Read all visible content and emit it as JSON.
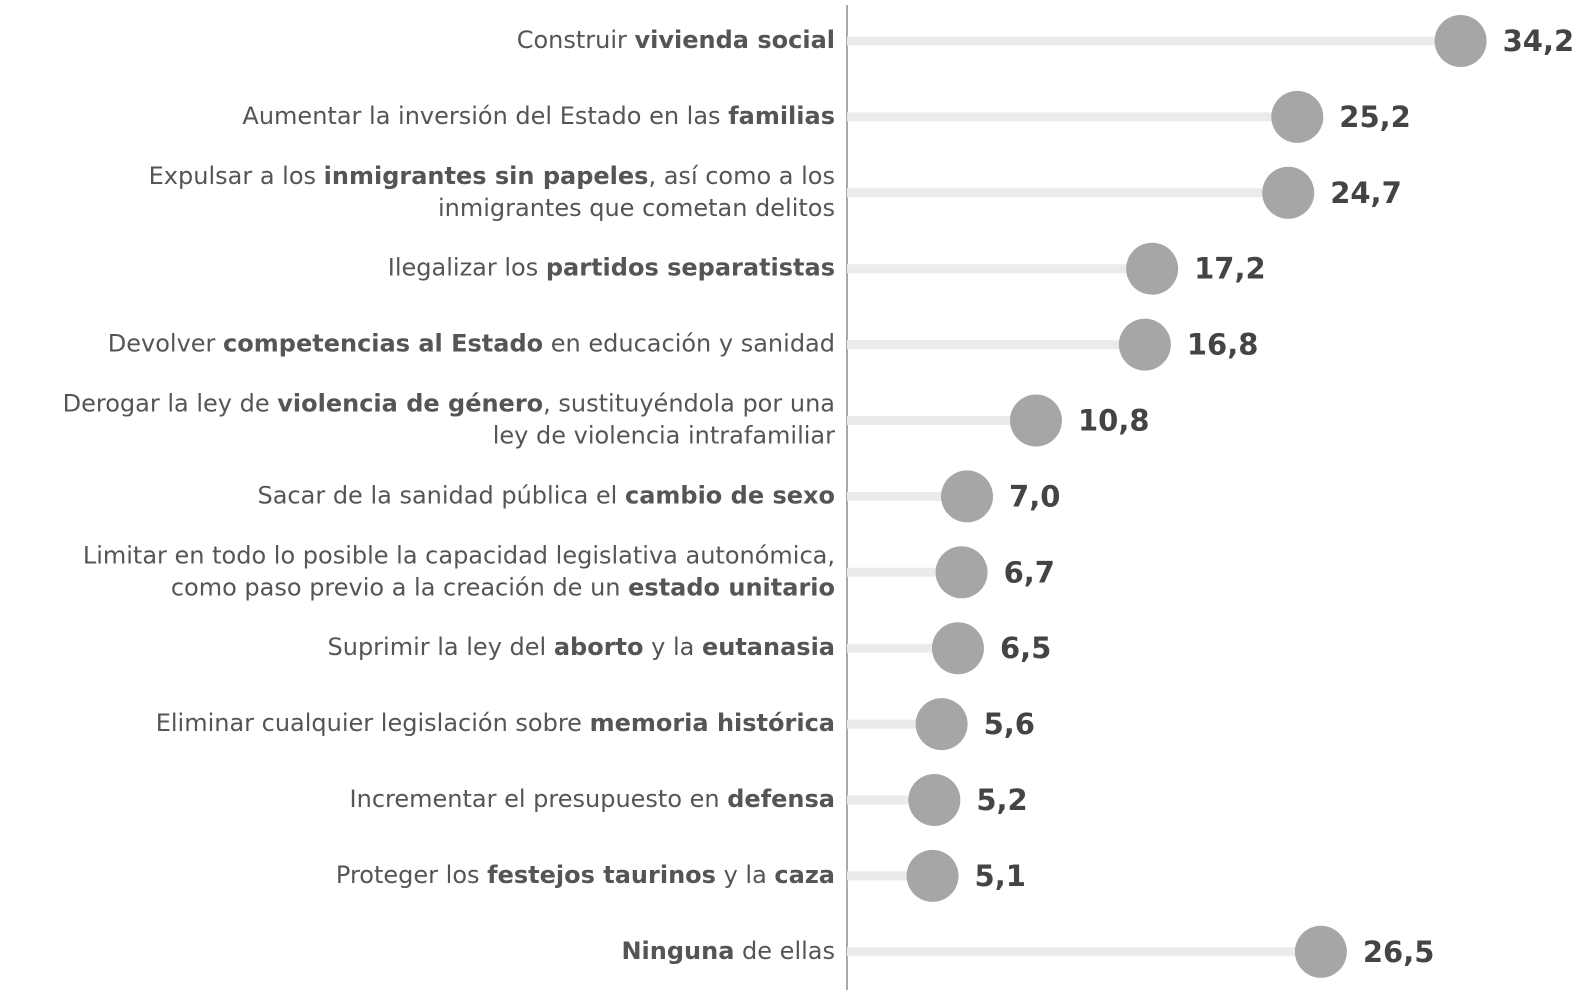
{
  "chart_data": {
    "type": "lollipop",
    "categories": [
      [
        [
          {
            "text": "Construir ",
            "bold": false
          },
          {
            "text": "vivienda social",
            "bold": true
          }
        ]
      ],
      [
        [
          {
            "text": "Aumentar la inversión del Estado en las ",
            "bold": false
          },
          {
            "text": "familias",
            "bold": true
          }
        ]
      ],
      [
        [
          {
            "text": "Expulsar a los ",
            "bold": false
          },
          {
            "text": "inmigrantes sin papeles",
            "bold": true
          },
          {
            "text": ", así como a los",
            "bold": false
          }
        ],
        [
          {
            "text": "inmigrantes que cometan delitos",
            "bold": false
          }
        ]
      ],
      [
        [
          {
            "text": "Ilegalizar los ",
            "bold": false
          },
          {
            "text": "partidos separatistas",
            "bold": true
          }
        ]
      ],
      [
        [
          {
            "text": "Devolver ",
            "bold": false
          },
          {
            "text": "competencias al Estado",
            "bold": true
          },
          {
            "text": " en educación y sanidad",
            "bold": false
          }
        ]
      ],
      [
        [
          {
            "text": "Derogar la ley de ",
            "bold": false
          },
          {
            "text": "violencia de género",
            "bold": true
          },
          {
            "text": ", sustituyéndola por una",
            "bold": false
          }
        ],
        [
          {
            "text": "ley de violencia intrafamiliar",
            "bold": false
          }
        ]
      ],
      [
        [
          {
            "text": "Sacar de la sanidad pública el ",
            "bold": false
          },
          {
            "text": "cambio de sexo",
            "bold": true
          }
        ]
      ],
      [
        [
          {
            "text": "Limitar en todo lo posible la capacidad legislativa autonómica,",
            "bold": false
          }
        ],
        [
          {
            "text": "como paso previo a la creación de un ",
            "bold": false
          },
          {
            "text": "estado unitario",
            "bold": true
          }
        ]
      ],
      [
        [
          {
            "text": "Suprimir la ley del ",
            "bold": false
          },
          {
            "text": "aborto",
            "bold": true
          },
          {
            "text": " y la ",
            "bold": false
          },
          {
            "text": "eutanasia",
            "bold": true
          }
        ]
      ],
      [
        [
          {
            "text": "Eliminar cualquier legislación sobre ",
            "bold": false
          },
          {
            "text": "memoria histórica",
            "bold": true
          }
        ]
      ],
      [
        [
          {
            "text": "Incrementar el presupuesto en ",
            "bold": false
          },
          {
            "text": "defensa",
            "bold": true
          }
        ]
      ],
      [
        [
          {
            "text": "Proteger los ",
            "bold": false
          },
          {
            "text": "festejos taurinos",
            "bold": true
          },
          {
            "text": " y la ",
            "bold": false
          },
          {
            "text": "caza",
            "bold": true
          }
        ]
      ],
      [
        [
          {
            "text": "Ninguna",
            "bold": true
          },
          {
            "text": " de ellas",
            "bold": false
          }
        ]
      ]
    ],
    "values": [
      34.2,
      25.2,
      24.7,
      17.2,
      16.8,
      10.8,
      7.0,
      6.7,
      6.5,
      5.6,
      5.2,
      5.1,
      26.5
    ],
    "value_labels": [
      "34,2",
      "25,2",
      "24,7",
      "17,2",
      "16,8",
      "10,8",
      "7,0",
      "6,7",
      "6,5",
      "5,6",
      "5,2",
      "5,1",
      "26,5"
    ],
    "color": "#a6a6a6",
    "track_color": "#ebebeb",
    "xlim": [
      0,
      41
    ]
  }
}
